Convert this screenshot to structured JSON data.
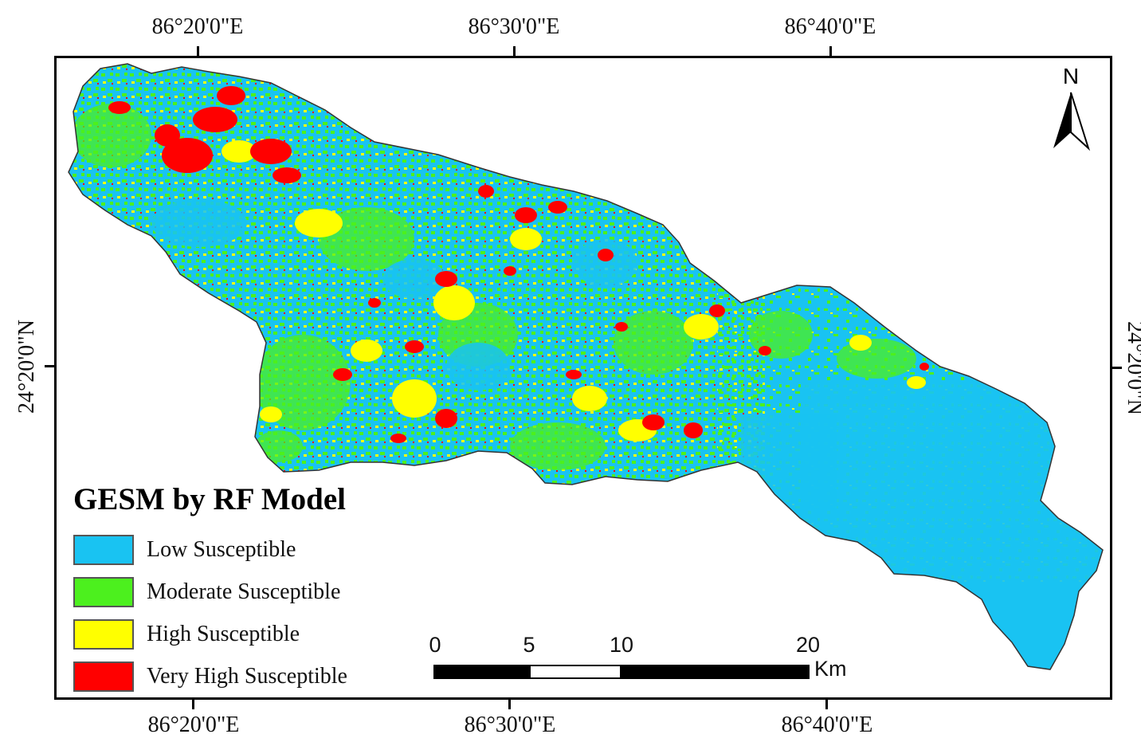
{
  "map": {
    "legend": {
      "title": "GESM by RF Model",
      "classes": [
        {
          "label": "Low Susceptible",
          "color": "#19c3f2"
        },
        {
          "label": "Moderate Susceptible",
          "color": "#4cf01e"
        },
        {
          "label": "High Susceptible",
          "color": "#ffff00"
        },
        {
          "label": "Very High Susceptible",
          "color": "#ff0000"
        }
      ]
    },
    "graticule": {
      "top": [
        "86°20'0\"E",
        "86°30'0\"E",
        "86°40'0\"E"
      ],
      "bottom": [
        "86°20'0\"E",
        "86°30'0\"E",
        "86°40'0\"E"
      ],
      "left": "24°20'0\"N",
      "right": "24°20'0\"N"
    },
    "scale_bar": {
      "ticks": [
        "0",
        "5",
        "10",
        "20"
      ],
      "unit": "Km"
    },
    "north_arrow": {
      "letter": "N",
      "icon": "north-arrow-icon"
    }
  }
}
